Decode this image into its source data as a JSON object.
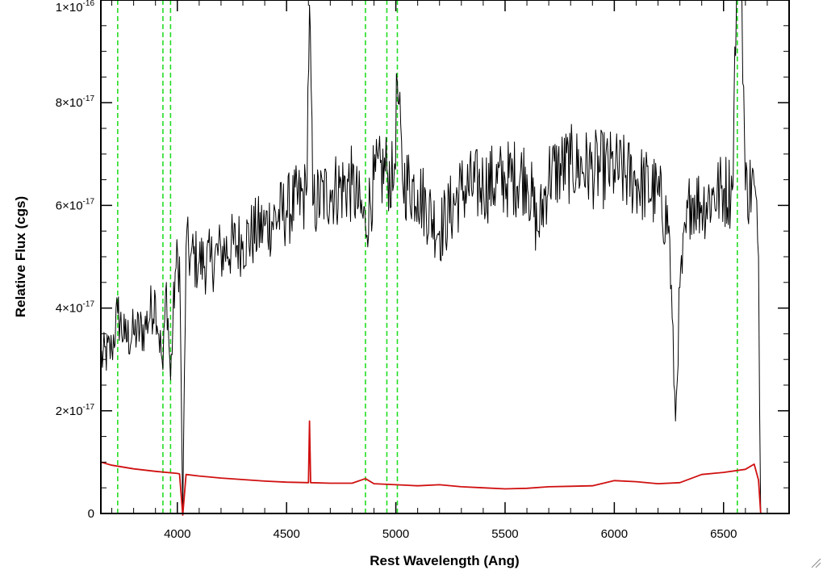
{
  "chart_data": {
    "type": "line",
    "xlabel": "Rest Wavelength (Ang)",
    "ylabel": "Relative Flux (cgs)",
    "xlim": [
      3650,
      6800
    ],
    "ylim": [
      0,
      1e-16
    ],
    "x_ticks": [
      4000,
      4500,
      5000,
      5500,
      6000,
      6500
    ],
    "x_tick_labels": [
      "4000",
      "4500",
      "5000",
      "5500",
      "6000",
      "6500"
    ],
    "y_ticks": [
      0,
      2e-17,
      4e-17,
      6e-17,
      8e-17,
      1e-16
    ],
    "y_tick_labels": [
      {
        "mantissa": "0",
        "exp": ""
      },
      {
        "mantissa": "2×10",
        "exp": "-17"
      },
      {
        "mantissa": "4×10",
        "exp": "-17"
      },
      {
        "mantissa": "6×10",
        "exp": "-17"
      },
      {
        "mantissa": "8×10",
        "exp": "-17"
      },
      {
        "mantissa": "1×10",
        "exp": "-16"
      }
    ],
    "vlines": {
      "color": "#22dd22",
      "style": "dashed",
      "x": [
        3727,
        3934,
        3969,
        4861,
        4959,
        5007,
        6563
      ]
    },
    "series": [
      {
        "color": "#000000",
        "style": "noisy",
        "x": [
          3650,
          3700,
          3727,
          3760,
          3800,
          3850,
          3900,
          3934,
          3950,
          3969,
          3990,
          4010,
          4025,
          4040,
          4060,
          4100,
          4150,
          4200,
          4300,
          4400,
          4500,
          4590,
          4605,
          4620,
          4700,
          4800,
          4861,
          4900,
          4959,
          4990,
          5007,
          5030,
          5100,
          5200,
          5300,
          5400,
          5500,
          5600,
          5650,
          5700,
          5800,
          5900,
          6000,
          6100,
          6200,
          6250,
          6280,
          6300,
          6350,
          6400,
          6450,
          6500,
          6540,
          6563,
          6580,
          6600,
          6640,
          6660,
          6670,
          6680,
          6700,
          6800
        ],
        "y": [
          3e-17,
          3.2e-17,
          3.9e-17,
          3.4e-17,
          3.5e-17,
          3.6e-17,
          4.2e-17,
          2.8e-17,
          4.5e-17,
          2.6e-17,
          4.7e-17,
          5e-17,
          0,
          5.2e-17,
          5e-17,
          4.9e-17,
          4.9e-17,
          5.1e-17,
          5.3e-17,
          5.6e-17,
          5.9e-17,
          6.2e-17,
          9.9e-17,
          6e-17,
          6.3e-17,
          6.4e-17,
          5.6e-17,
          6.5e-17,
          6.7e-17,
          6.4e-17,
          8.4e-17,
          6.5e-17,
          6.3e-17,
          5.5e-17,
          6.3e-17,
          6.4e-17,
          6.5e-17,
          6.6e-17,
          5.5e-17,
          6.6e-17,
          6.8e-17,
          6.7e-17,
          6.7e-17,
          6.5e-17,
          6.2e-17,
          5.6e-17,
          1.8e-17,
          4.4e-17,
          6.2e-17,
          6e-17,
          6.2e-17,
          6.3e-17,
          6.3e-17,
          1.1e-16,
          1.1e-16,
          6.3e-17,
          6.4e-17,
          5e-17,
          0,
          0,
          0,
          0
        ]
      },
      {
        "color": "#d01010",
        "style": "smooth",
        "x": [
          3650,
          3700,
          3800,
          3900,
          4000,
          4010,
          4025,
          4040,
          4100,
          4200,
          4300,
          4400,
          4500,
          4600,
          4605,
          4610,
          4700,
          4800,
          4861,
          4900,
          5000,
          5100,
          5200,
          5300,
          5400,
          5500,
          5600,
          5700,
          5800,
          5900,
          6000,
          6100,
          6200,
          6300,
          6400,
          6500,
          6600,
          6640,
          6660,
          6670,
          6680,
          6700,
          6800
        ],
        "y": [
          1e-17,
          9.4e-18,
          8.7e-18,
          8.2e-18,
          7.8e-18,
          7.7e-18,
          -1e-18,
          7.6e-18,
          7.3e-18,
          6.9e-18,
          6.6e-18,
          6.3e-18,
          6.1e-18,
          6e-18,
          1.8e-17,
          6e-18,
          5.9e-18,
          5.9e-18,
          6.8e-18,
          5.8e-18,
          5.6e-18,
          5.4e-18,
          5.6e-18,
          5.2e-18,
          5e-18,
          4.8e-18,
          4.9e-18,
          5.2e-18,
          5.3e-18,
          5.4e-18,
          6.4e-18,
          6.2e-18,
          5.8e-18,
          6e-18,
          7.6e-18,
          8e-18,
          8.6e-18,
          9.6e-18,
          6.5e-18,
          0,
          0,
          0,
          0
        ]
      }
    ]
  }
}
